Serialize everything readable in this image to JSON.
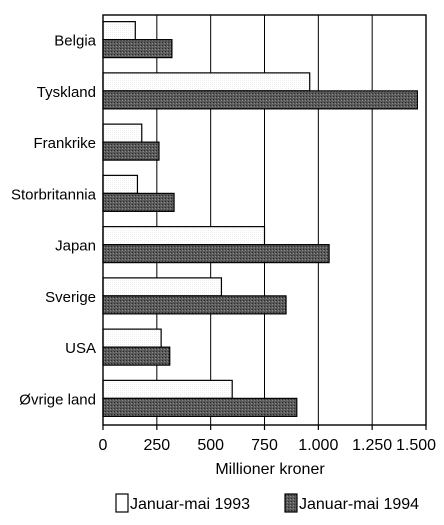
{
  "chart_data": {
    "type": "bar",
    "orientation": "horizontal",
    "categories": [
      "Belgia",
      "Tyskland",
      "Frankrike",
      "Storbritannia",
      "Japan",
      "Sverige",
      "USA",
      "Øvrige land"
    ],
    "series": [
      {
        "name": "Januar-mai 1993",
        "values": [
          150,
          960,
          180,
          160,
          750,
          550,
          270,
          600
        ],
        "color": "#ffffff"
      },
      {
        "name": "Januar-mai 1994",
        "values": [
          320,
          1460,
          260,
          330,
          1050,
          850,
          310,
          900
        ],
        "color": "#555555"
      }
    ],
    "xlim": [
      0,
      1500
    ],
    "xticks": [
      0,
      250,
      500,
      750,
      1000,
      1250,
      1500
    ],
    "xtick_labels": [
      "0",
      "250",
      "500",
      "750",
      "1.000",
      "1.250",
      "1.500"
    ],
    "xlabel": "Millioner kroner",
    "grid": true,
    "legend": "bottom"
  }
}
